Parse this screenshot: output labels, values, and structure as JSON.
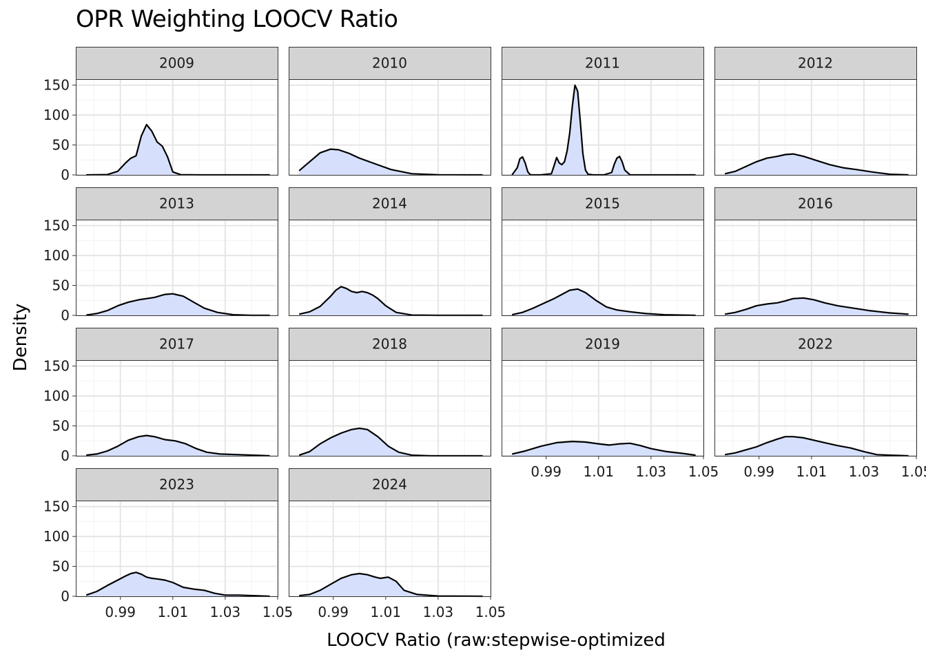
{
  "title": "OPR Weighting LOOCV Ratio",
  "chart_data": {
    "type": "area",
    "title": "OPR Weighting LOOCV Ratio",
    "xlabel": "LOOCV Ratio (raw:stepwise-optimized",
    "ylabel": "Density",
    "xlim": [
      0.973,
      1.05
    ],
    "ylim": [
      0,
      160
    ],
    "x_ticks": [
      0.99,
      1.01,
      1.03,
      1.05
    ],
    "x_tick_labels": [
      "0.99",
      "1.01",
      "1.03",
      "1.05"
    ],
    "y_ticks": [
      0,
      50,
      100,
      150
    ],
    "y_tick_labels": [
      "0",
      "50",
      "100",
      "150"
    ],
    "grid": true,
    "layout": "facet_wrap, 4 columns",
    "fill_color": "#d6e0fc",
    "line_color": "#000000",
    "strip_color": "#d3d3d3",
    "panels": [
      {
        "label": "2009",
        "x": [
          0.977,
          0.985,
          0.989,
          0.992,
          0.994,
          0.996,
          0.998,
          1.0,
          1.002,
          1.004,
          1.006,
          1.008,
          1.01,
          1.013,
          1.02,
          1.03,
          1.047
        ],
        "y": [
          0,
          0.5,
          6,
          20,
          28,
          32,
          65,
          84,
          73,
          55,
          48,
          30,
          5,
          0.3,
          0,
          0,
          0
        ]
      },
      {
        "label": "2010",
        "x": [
          0.977,
          0.981,
          0.985,
          0.989,
          0.992,
          0.996,
          1.0,
          1.005,
          1.012,
          1.02,
          1.03,
          1.04,
          1.047
        ],
        "y": [
          7,
          22,
          37,
          43,
          42,
          36,
          28,
          20,
          9,
          2,
          0.2,
          0,
          0
        ]
      },
      {
        "label": "2011",
        "x": [
          0.977,
          0.979,
          0.98,
          0.981,
          0.982,
          0.983,
          0.984,
          0.988,
          0.992,
          0.993,
          0.994,
          0.995,
          0.996,
          0.997,
          0.998,
          0.999,
          1.0,
          1.001,
          1.002,
          1.003,
          1.004,
          1.005,
          1.006,
          1.008,
          1.012,
          1.015,
          1.016,
          1.017,
          1.018,
          1.019,
          1.02,
          1.022,
          1.03,
          1.047
        ],
        "y": [
          0,
          12,
          27,
          30,
          20,
          5,
          0,
          0,
          2,
          15,
          29,
          20,
          17,
          22,
          40,
          70,
          115,
          150,
          140,
          90,
          35,
          8,
          1,
          0,
          0,
          4,
          18,
          28,
          31,
          22,
          8,
          0,
          0,
          0
        ]
      },
      {
        "label": "2012",
        "x": [
          0.977,
          0.981,
          0.985,
          0.989,
          0.993,
          0.997,
          1.0,
          1.003,
          1.007,
          1.012,
          1.017,
          1.022,
          1.027,
          1.033,
          1.04,
          1.047
        ],
        "y": [
          2,
          6,
          14,
          22,
          28,
          31,
          34,
          35,
          31,
          24,
          17,
          12,
          9,
          5,
          1,
          0
        ]
      },
      {
        "label": "2013",
        "x": [
          0.977,
          0.981,
          0.985,
          0.989,
          0.993,
          0.997,
          1.0,
          1.003,
          1.007,
          1.01,
          1.014,
          1.018,
          1.022,
          1.027,
          1.033,
          1.04,
          1.047
        ],
        "y": [
          0.5,
          3,
          8,
          16,
          22,
          26,
          28,
          30,
          35,
          36,
          32,
          22,
          12,
          5,
          1,
          0,
          0
        ]
      },
      {
        "label": "2014",
        "x": [
          0.977,
          0.981,
          0.985,
          0.989,
          0.991,
          0.993,
          0.995,
          0.997,
          0.999,
          1.001,
          1.003,
          1.005,
          1.007,
          1.01,
          1.014,
          1.02,
          1.03,
          1.047
        ],
        "y": [
          2,
          6,
          15,
          32,
          42,
          48,
          45,
          40,
          38,
          40,
          38,
          34,
          28,
          16,
          5,
          0.5,
          0,
          0
        ]
      },
      {
        "label": "2015",
        "x": [
          0.977,
          0.981,
          0.985,
          0.989,
          0.993,
          0.996,
          0.999,
          1.002,
          1.005,
          1.009,
          1.013,
          1.017,
          1.022,
          1.028,
          1.035,
          1.047
        ],
        "y": [
          1,
          5,
          12,
          20,
          28,
          35,
          42,
          44,
          38,
          25,
          14,
          9,
          6,
          3,
          1,
          0
        ]
      },
      {
        "label": "2016",
        "x": [
          0.977,
          0.981,
          0.985,
          0.989,
          0.993,
          0.997,
          1.0,
          1.003,
          1.007,
          1.011,
          1.015,
          1.02,
          1.026,
          1.032,
          1.04,
          1.047
        ],
        "y": [
          2,
          5,
          10,
          16,
          19,
          21,
          24,
          28,
          29,
          26,
          21,
          16,
          12,
          8,
          4,
          2
        ]
      },
      {
        "label": "2017",
        "x": [
          0.977,
          0.981,
          0.985,
          0.989,
          0.993,
          0.997,
          1.0,
          1.003,
          1.007,
          1.011,
          1.015,
          1.019,
          1.023,
          1.028,
          1.035,
          1.047
        ],
        "y": [
          1,
          3,
          8,
          16,
          26,
          32,
          34,
          32,
          27,
          25,
          20,
          12,
          6,
          3,
          2,
          0
        ]
      },
      {
        "label": "2018",
        "x": [
          0.977,
          0.981,
          0.985,
          0.989,
          0.993,
          0.997,
          1.0,
          1.003,
          1.007,
          1.011,
          1.015,
          1.02,
          1.027,
          1.035,
          1.047
        ],
        "y": [
          1,
          7,
          20,
          30,
          38,
          44,
          46,
          44,
          32,
          16,
          6,
          1,
          0,
          0,
          0
        ]
      },
      {
        "label": "2019",
        "x": [
          0.977,
          0.982,
          0.988,
          0.994,
          1.0,
          1.005,
          1.01,
          1.014,
          1.018,
          1.022,
          1.026,
          1.03,
          1.036,
          1.042,
          1.047
        ],
        "y": [
          3,
          8,
          16,
          22,
          24,
          23,
          20,
          18,
          20,
          21,
          17,
          12,
          7,
          4,
          1
        ]
      },
      {
        "label": "2022",
        "x": [
          0.977,
          0.981,
          0.985,
          0.989,
          0.993,
          0.997,
          1.0,
          1.003,
          1.007,
          1.011,
          1.015,
          1.02,
          1.025,
          1.03,
          1.035,
          1.04,
          1.047
        ],
        "y": [
          2,
          5,
          10,
          15,
          22,
          28,
          32,
          32,
          30,
          26,
          22,
          17,
          13,
          7,
          2,
          1,
          0
        ]
      },
      {
        "label": "2023",
        "x": [
          0.977,
          0.981,
          0.985,
          0.989,
          0.992,
          0.994,
          0.996,
          0.998,
          1.0,
          1.002,
          1.004,
          1.007,
          1.01,
          1.014,
          1.018,
          1.022,
          1.026,
          1.03,
          1.035,
          1.047
        ],
        "y": [
          2,
          8,
          18,
          27,
          34,
          38,
          40,
          37,
          32,
          30,
          29,
          27,
          23,
          15,
          12,
          10,
          5,
          2,
          2,
          0
        ]
      },
      {
        "label": "2024",
        "x": [
          0.977,
          0.981,
          0.985,
          0.989,
          0.993,
          0.997,
          1.0,
          1.003,
          1.006,
          1.008,
          1.011,
          1.014,
          1.017,
          1.022,
          1.03,
          1.047
        ],
        "y": [
          1,
          3,
          10,
          20,
          30,
          36,
          38,
          36,
          32,
          30,
          32,
          25,
          10,
          3,
          0.5,
          0
        ]
      }
    ]
  }
}
